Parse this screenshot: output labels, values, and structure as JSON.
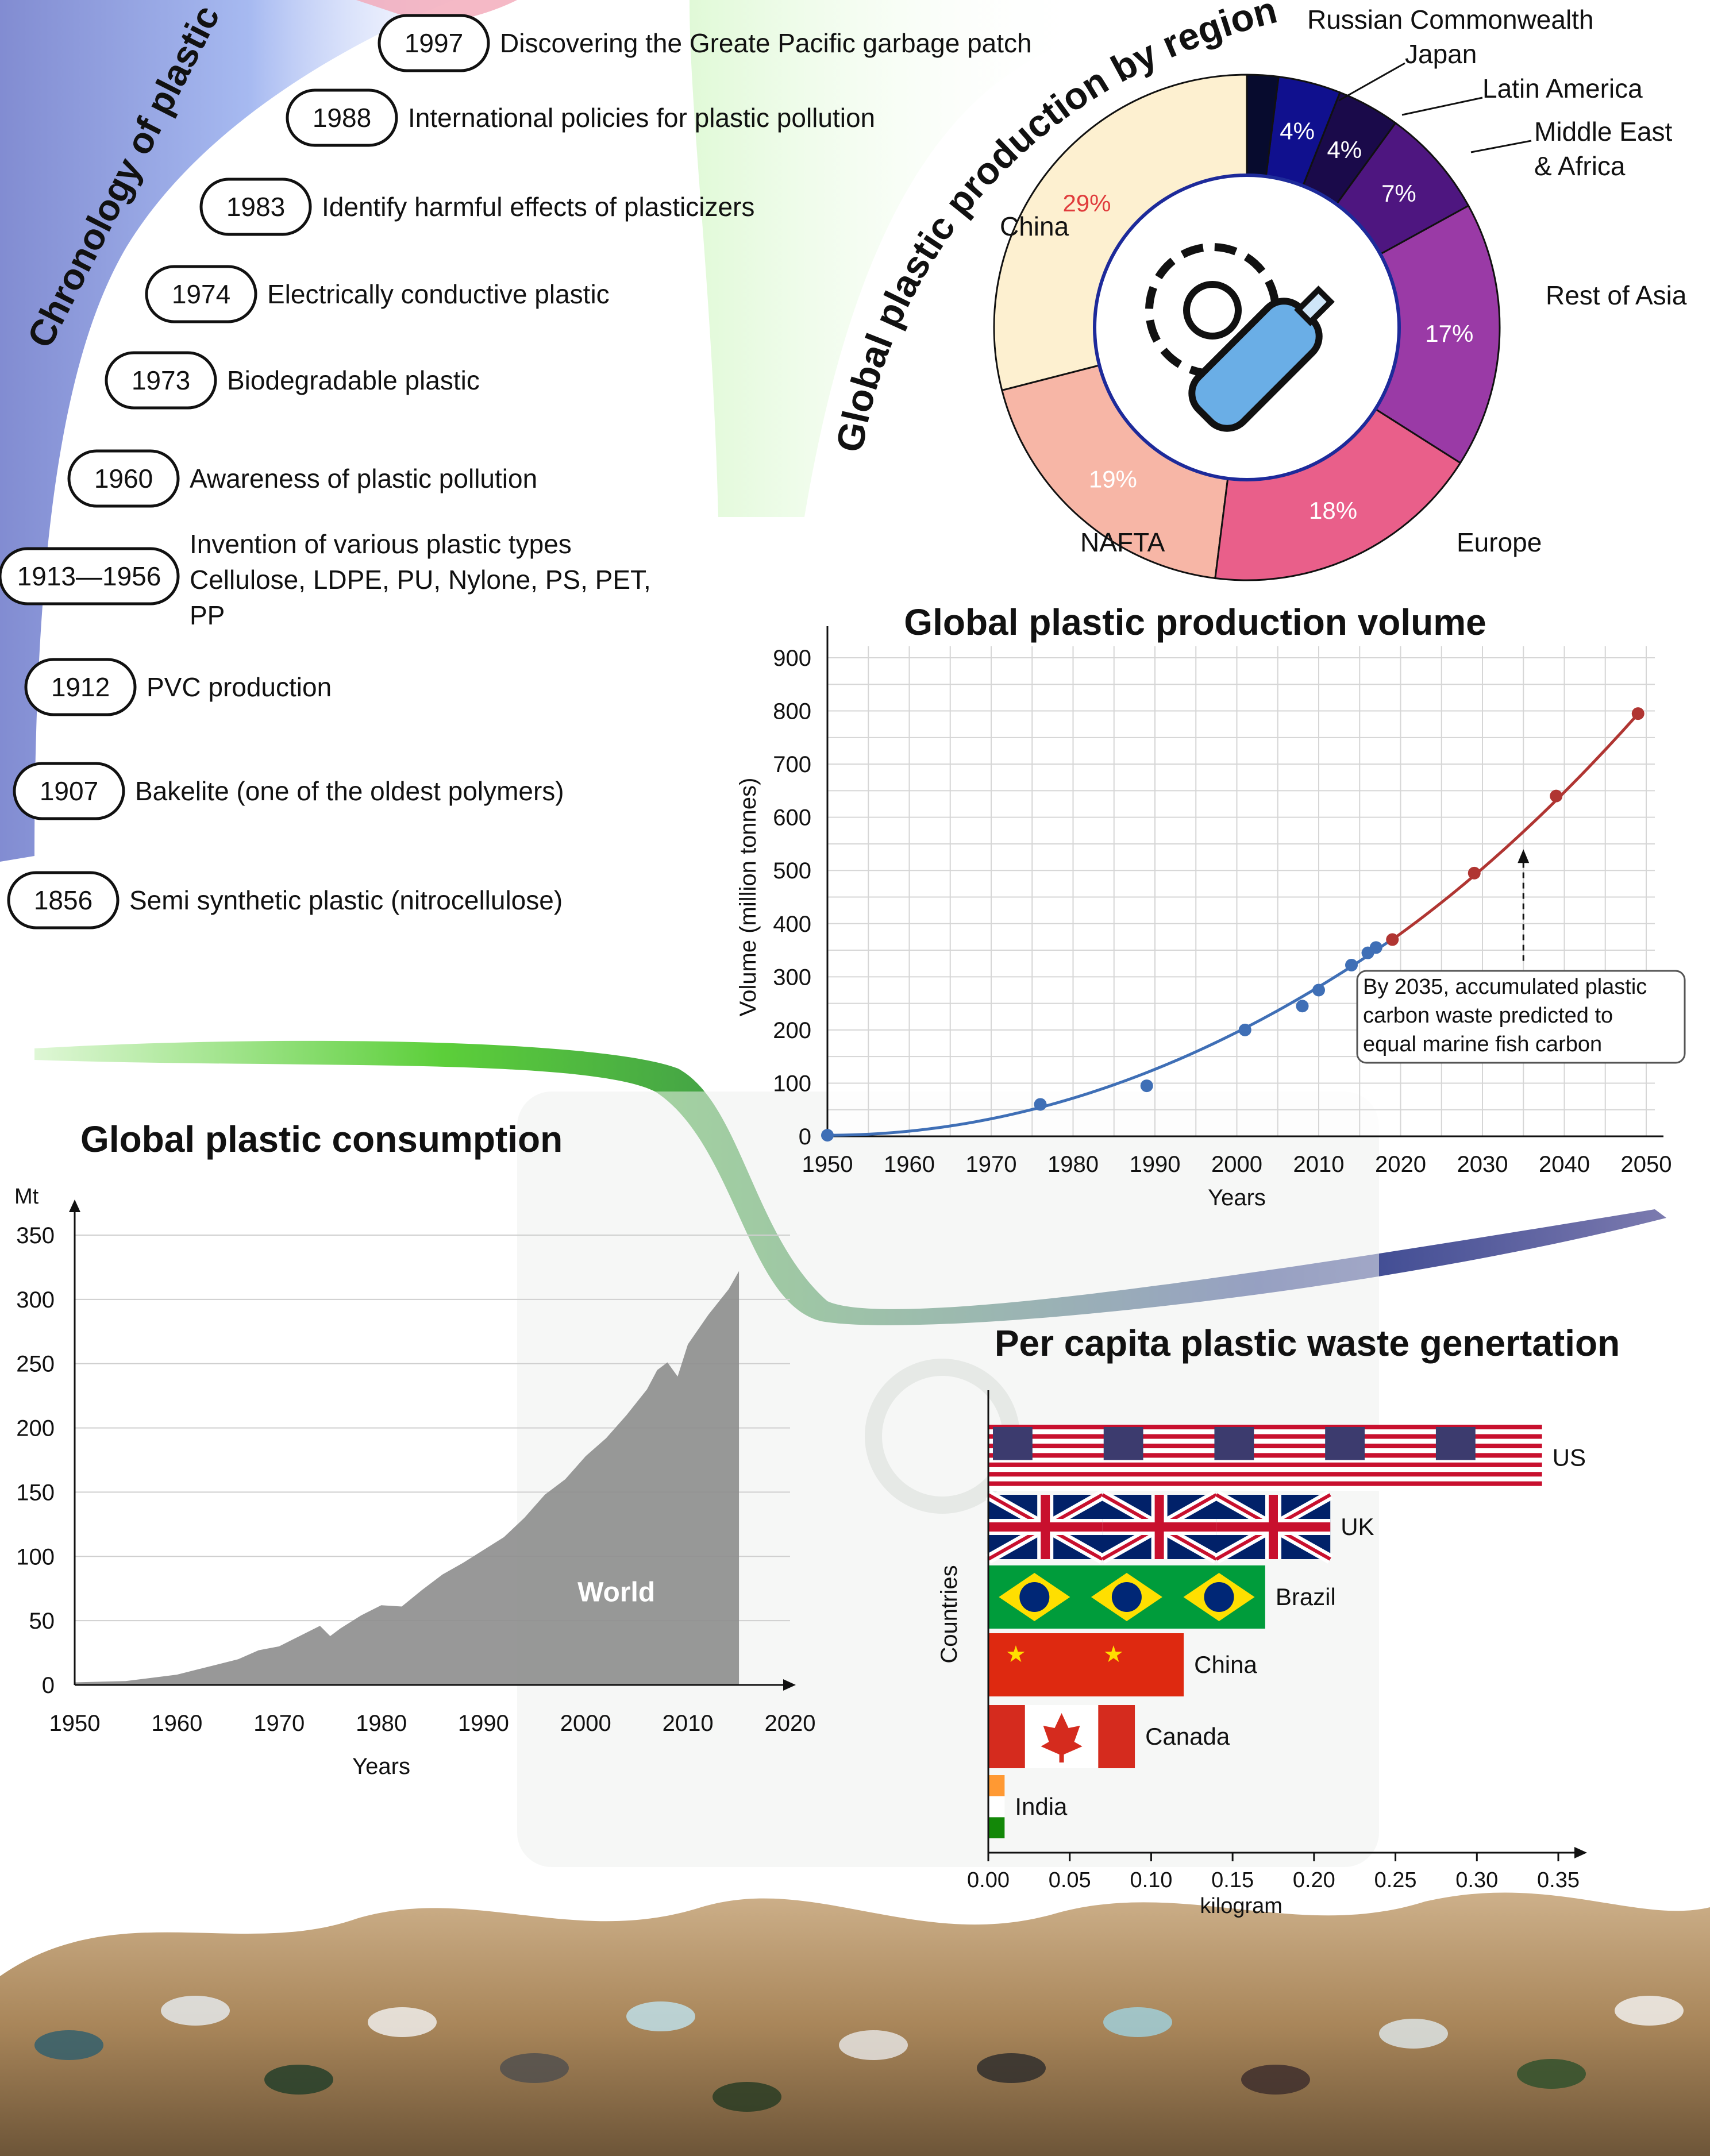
{
  "chronology": {
    "title": "Chronology of plastic",
    "events": [
      {
        "year": "1997",
        "text": [
          "Discovering the Greate Pacific garbage patch"
        ]
      },
      {
        "year": "1988",
        "text": [
          "International policies for plastic pollution"
        ]
      },
      {
        "year": "1983",
        "text": [
          "Identify harmful effects of plasticizers"
        ]
      },
      {
        "year": "1974",
        "text": [
          "Electrically conductive plastic"
        ]
      },
      {
        "year": "1973",
        "text": [
          "Biodegradable plastic"
        ]
      },
      {
        "year": "1960",
        "text": [
          "Awareness of plastic pollution"
        ]
      },
      {
        "year": "1913—1956",
        "text": [
          "Invention of various plastic types",
          "Cellulose, LDPE, PU, Nylone, PS, PET,",
          "PP"
        ]
      },
      {
        "year": "1912",
        "text": [
          "PVC production"
        ]
      },
      {
        "year": "1907",
        "text": [
          "Bakelite (one of the oldest polymers)"
        ]
      },
      {
        "year": "1856",
        "text": [
          "Semi synthetic plastic (nitrocellulose)"
        ]
      }
    ]
  },
  "colors": {
    "chrono_band": "#8a96d8",
    "green": "#5ccf3a",
    "navy": "#24237a",
    "china": "#fdf0d0",
    "nafta": "#f7b6a6",
    "europe": "#e95f8a",
    "rest_asia": "#9a3aa6",
    "mea": "#4e1680",
    "latin": "#1a0a4a",
    "japan": "#10108e",
    "russia": "#070b2e",
    "blue_series": "#3f6fb6",
    "red_series": "#b03532",
    "area": "#8d8d8d"
  },
  "chart_data": [
    {
      "type": "pie",
      "title": "Global plastic production by region",
      "center_icon": "gear-and-bottle-icon",
      "slices": [
        {
          "label": "China",
          "value": 29,
          "value_label": "29%",
          "color_key": "china",
          "value_color": "#e03c3c"
        },
        {
          "label": "NAFTA",
          "value": 19,
          "value_label": "19%",
          "color_key": "nafta",
          "value_color": "#ffffff"
        },
        {
          "label": "Europe",
          "value": 18,
          "value_label": "18%",
          "color_key": "europe",
          "value_color": "#ffffff"
        },
        {
          "label": "Rest of Asia",
          "value": 17,
          "value_label": "17%",
          "color_key": "rest_asia",
          "value_color": "#ffffff"
        },
        {
          "label": "Middle East & Africa",
          "value": 7,
          "value_label": "7%",
          "color_key": "mea",
          "value_color": "#ffffff"
        },
        {
          "label": "Latin America",
          "value": 4,
          "value_label": "4%",
          "color_key": "latin",
          "value_color": "#ffffff"
        },
        {
          "label": "Japan",
          "value": 4,
          "value_label": "4%",
          "color_key": "japan",
          "value_color": "#ffffff"
        },
        {
          "label": "Russian Commonwealth",
          "value": 2,
          "value_label": "",
          "color_key": "russia",
          "value_color": "#ffffff"
        }
      ]
    },
    {
      "type": "line",
      "title": "Global plastic production volume",
      "xlabel": "Years",
      "ylabel": "Volume (million tonnes)",
      "xlim": [
        1950,
        2050
      ],
      "ylim": [
        0,
        900
      ],
      "xticks": [
        1950,
        1960,
        1970,
        1980,
        1990,
        2000,
        2010,
        2020,
        2030,
        2040,
        2050
      ],
      "yticks": [
        0,
        100,
        200,
        300,
        400,
        500,
        600,
        700,
        800,
        900
      ],
      "grid": true,
      "series": [
        {
          "color_key": "blue_series",
          "x": [
            1950,
            1976,
            1989,
            2001,
            2008,
            2010,
            2014,
            2016,
            2017
          ],
          "y": [
            2,
            60,
            95,
            200,
            245,
            275,
            322,
            345,
            355
          ]
        },
        {
          "color_key": "red_series",
          "x": [
            2019,
            2029,
            2039,
            2049
          ],
          "y": [
            370,
            495,
            640,
            795
          ]
        }
      ],
      "annotation": {
        "lines": [
          "By 2035, accumulated plastic",
          "carbon waste predicted to",
          "equal marine fish carbon"
        ],
        "arrow_x": 2035,
        "arrow_to_y": 540
      }
    },
    {
      "type": "area",
      "title": "Global plastic consumption",
      "series_label": "World",
      "xlabel": "Years",
      "ylabel": "Mt",
      "xlim": [
        1950,
        2020
      ],
      "ylim": [
        0,
        350
      ],
      "xticks": [
        1950,
        1960,
        1970,
        1980,
        1990,
        2000,
        2010,
        2020
      ],
      "yticks": [
        0,
        50,
        100,
        150,
        200,
        250,
        300,
        350
      ],
      "x": [
        1950,
        1955,
        1960,
        1962,
        1964,
        1966,
        1968,
        1970,
        1972,
        1974,
        1975,
        1976,
        1978,
        1980,
        1982,
        1984,
        1986,
        1988,
        1990,
        1992,
        1994,
        1996,
        1998,
        2000,
        2002,
        2004,
        2006,
        2007,
        2008,
        2009,
        2010,
        2012,
        2014,
        2015
      ],
      "y": [
        2,
        3,
        8,
        12,
        16,
        20,
        27,
        30,
        38,
        46,
        38,
        44,
        54,
        62,
        61,
        74,
        86,
        95,
        105,
        115,
        130,
        148,
        160,
        178,
        192,
        210,
        230,
        245,
        251,
        240,
        265,
        288,
        308,
        322
      ]
    },
    {
      "type": "bar",
      "orientation": "horizontal",
      "title": "Per capita plastic waste genertation",
      "xlabel": "kilogram",
      "ylabel": "Countries",
      "xlim": [
        0,
        0.35
      ],
      "xticks": [
        "0.00",
        "0.05",
        "0.10",
        "0.15",
        "0.20",
        "0.25",
        "0.30",
        "0.35"
      ],
      "categories": [
        "US",
        "UK",
        "Brazil",
        "China",
        "Canada",
        "India"
      ],
      "values": [
        0.34,
        0.21,
        0.17,
        0.12,
        0.09,
        0.01
      ],
      "bar_patterns": [
        "us-flag",
        "uk-flag",
        "brazil-flag",
        "china-flag",
        "canada-flag",
        "india-flag"
      ]
    }
  ]
}
